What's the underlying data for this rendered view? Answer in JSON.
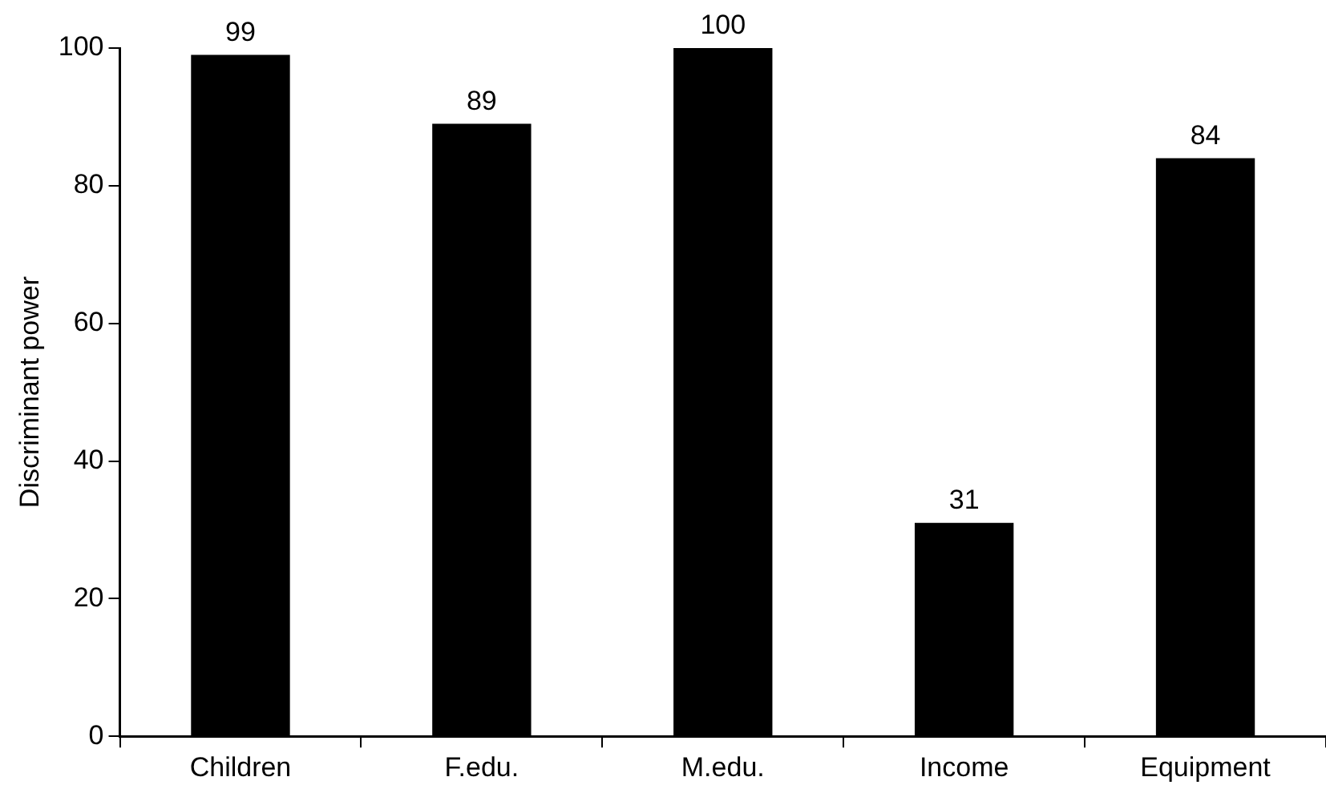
{
  "chart_data": {
    "type": "bar",
    "ylabel": "Discriminant power",
    "categories": [
      "Children",
      "F.edu.",
      "M.edu.",
      "Income",
      "Equipment"
    ],
    "values": [
      99,
      89,
      100,
      31,
      84
    ],
    "color": "#000000",
    "ylim": [
      0,
      100
    ],
    "yticks": [
      0,
      20,
      40,
      60,
      80,
      100
    ],
    "data_labels": true,
    "grid": false,
    "legend": false
  }
}
